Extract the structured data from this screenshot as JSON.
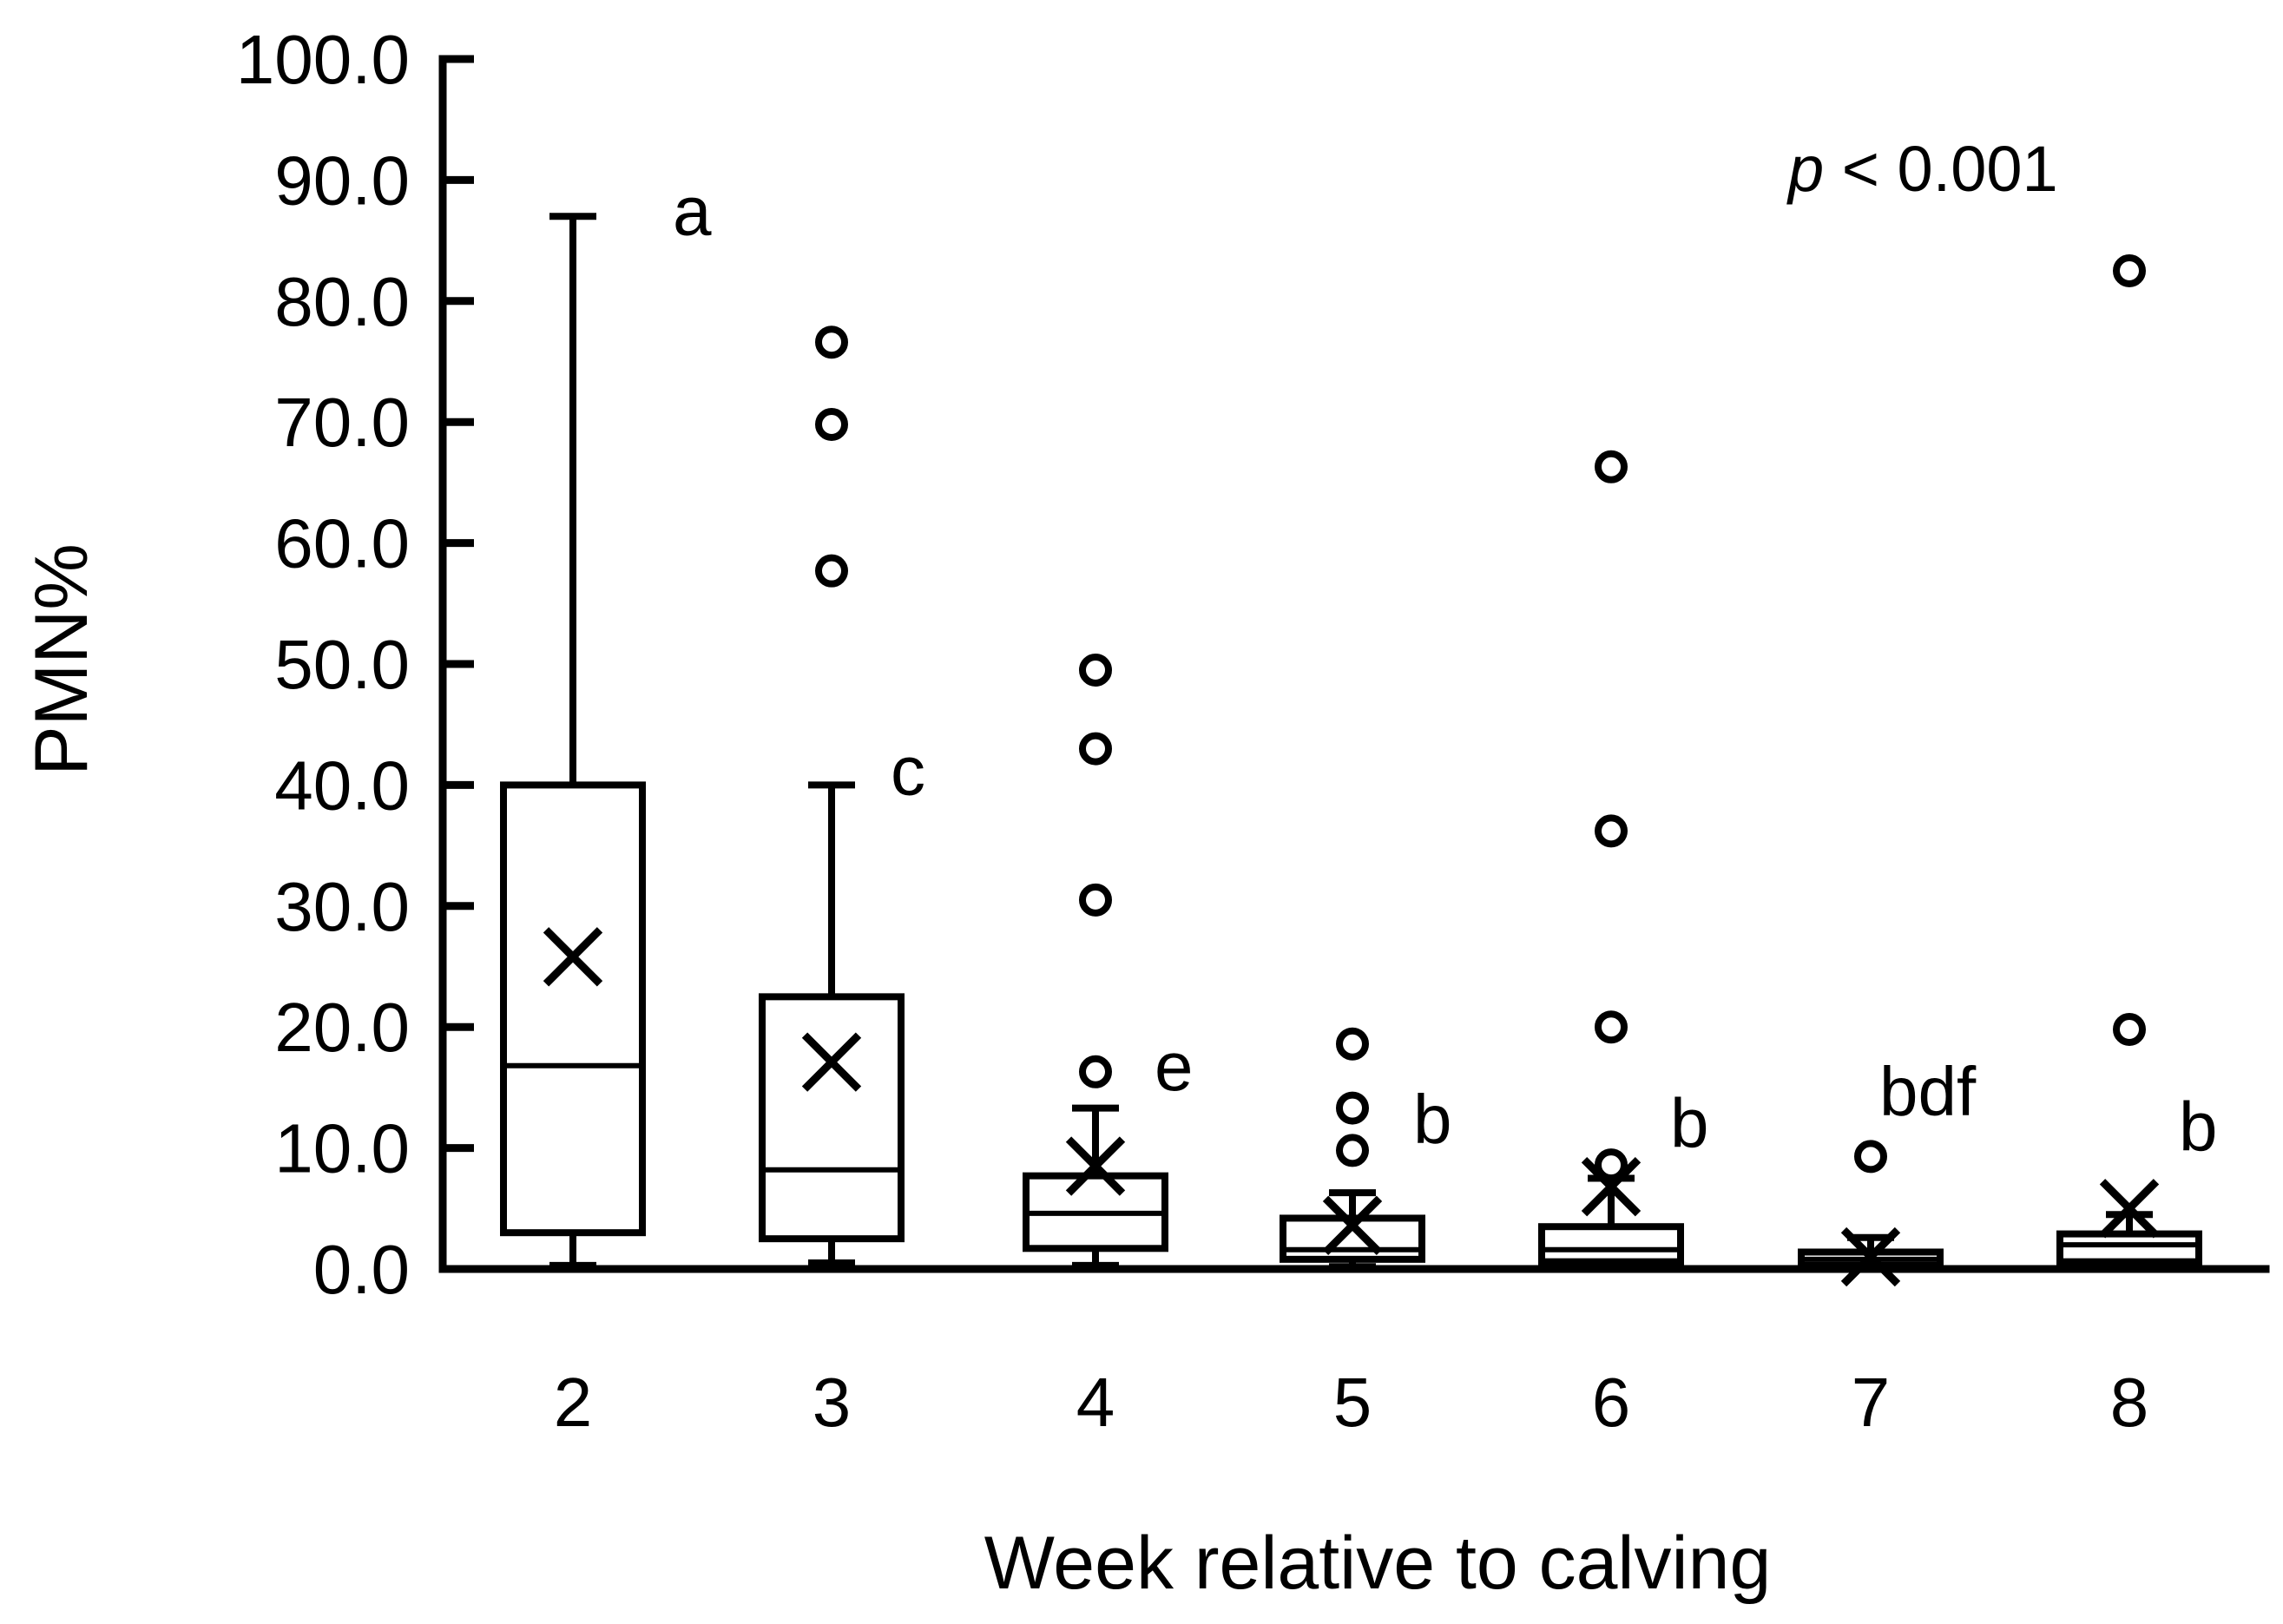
{
  "chart_data": {
    "type": "box",
    "xlabel": "Week relative to calving",
    "ylabel": "PMN%",
    "ylim": [
      0,
      100
    ],
    "yticks": [
      "0.0",
      "10.0",
      "20.0",
      "30.0",
      "40.0",
      "50.0",
      "60.0",
      "70.0",
      "80.0",
      "90.0",
      "100.0"
    ],
    "annotation": {
      "italic": "p",
      "text": " < 0.001"
    },
    "groups": [
      {
        "week": "2",
        "letter": "a",
        "min": 0.3,
        "q1": 3.0,
        "median": 16.8,
        "q3": 40.0,
        "max": 87.0,
        "mean": 25.8,
        "outliers": []
      },
      {
        "week": "3",
        "letter": "c",
        "min": 0.5,
        "q1": 2.5,
        "median": 8.2,
        "q3": 22.5,
        "max": 40.0,
        "mean": 17.1,
        "outliers": [
          57.7,
          69.8,
          76.6
        ]
      },
      {
        "week": "4",
        "letter": "e",
        "min": 0.3,
        "q1": 1.7,
        "median": 4.6,
        "q3": 7.7,
        "max": 13.3,
        "mean": 8.5,
        "outliers": [
          16.3,
          30.5,
          43.0,
          49.5
        ]
      },
      {
        "week": "5",
        "letter": "b",
        "min": 0.2,
        "q1": 0.8,
        "median": 1.6,
        "q3": 4.2,
        "max": 6.3,
        "mean": 3.6,
        "outliers": [
          9.8,
          13.3,
          18.6
        ]
      },
      {
        "week": "6",
        "letter": "b",
        "min": 0.2,
        "q1": 0.6,
        "median": 1.6,
        "q3": 3.5,
        "max": 7.5,
        "mean": 6.8,
        "outliers": [
          8.6,
          20.0,
          36.2,
          66.3
        ]
      },
      {
        "week": "7",
        "letter": "bdf",
        "min": 0.1,
        "q1": 0.3,
        "median": 0.8,
        "q3": 1.4,
        "max": 2.6,
        "mean": 1.0,
        "outliers": [
          9.3
        ]
      },
      {
        "week": "8",
        "letter": "b",
        "min": 0.2,
        "q1": 0.6,
        "median": 2.0,
        "q3": 2.9,
        "max": 4.5,
        "mean": 5.0,
        "outliers": [
          19.8,
          82.5
        ]
      }
    ]
  }
}
